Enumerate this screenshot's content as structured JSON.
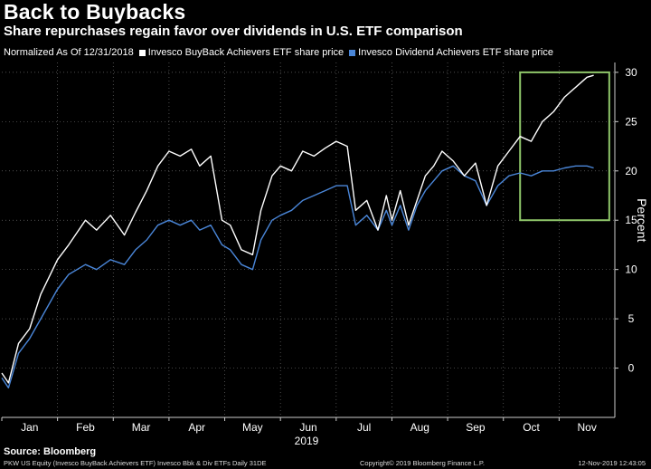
{
  "header": {
    "title": "Back to Buybacks",
    "subtitle": "Share repurchases regain favor over dividends in U.S. ETF comparison"
  },
  "legend": {
    "prefix": "Normalized As Of 12/31/2018",
    "items": [
      {
        "label": "Invesco BuyBack Achievers ETF share price",
        "color": "#ffffff"
      },
      {
        "label": "Invesco Dividend Achievers ETF share price",
        "color": "#4a86d8"
      }
    ]
  },
  "footer": {
    "source": "Source: Bloomberg",
    "tickers": "PKW US Equity (Invesco BuyBack Achievers ETF) Invesco Bbk & Div ETFs  Daily 31DE",
    "copyright": "Copyright© 2019 Bloomberg Finance L.P.",
    "timestamp": "12-Nov-2019 12:43:05"
  },
  "chart_data": {
    "type": "line",
    "ylabel": "Percent",
    "xlabel": "2019",
    "ylim": [
      -5,
      31
    ],
    "yticks": [
      0,
      5,
      10,
      15,
      20,
      25,
      30
    ],
    "y_axis_side": "right",
    "grid": "dotted",
    "month_labels": [
      "Jan",
      "Feb",
      "Mar",
      "Apr",
      "May",
      "Jun",
      "Jul",
      "Aug",
      "Sep",
      "Oct",
      "Nov"
    ],
    "highlight_box": {
      "x_range": [
        9.3,
        10.9
      ],
      "y_range": [
        15,
        30
      ],
      "color": "#8fc66a"
    },
    "series": [
      {
        "name": "Invesco BuyBack Achievers ETF share price",
        "color": "#ffffff",
        "x": [
          0,
          0.12,
          0.3,
          0.5,
          0.7,
          1.0,
          1.2,
          1.5,
          1.7,
          1.95,
          2.2,
          2.4,
          2.6,
          2.8,
          3.0,
          3.2,
          3.4,
          3.55,
          3.75,
          3.95,
          4.1,
          4.3,
          4.5,
          4.65,
          4.85,
          5.0,
          5.2,
          5.4,
          5.6,
          5.8,
          6.0,
          6.2,
          6.35,
          6.55,
          6.75,
          6.9,
          7.0,
          7.15,
          7.3,
          7.45,
          7.6,
          7.75,
          7.9,
          8.1,
          8.3,
          8.5,
          8.7,
          8.9,
          9.1,
          9.3,
          9.5,
          9.7,
          9.9,
          10.1,
          10.3,
          10.5,
          10.62
        ],
        "values": [
          -0.5,
          -1.5,
          2.5,
          4.0,
          7.5,
          11.0,
          12.5,
          15.0,
          14.0,
          15.5,
          13.5,
          15.8,
          18.0,
          20.5,
          22.0,
          21.5,
          22.2,
          20.5,
          21.5,
          15.0,
          14.5,
          12.0,
          11.5,
          16.0,
          19.5,
          20.5,
          20.0,
          22.0,
          21.5,
          22.3,
          23.0,
          22.5,
          16.0,
          17.0,
          14.0,
          17.5,
          15.0,
          18.0,
          14.5,
          17.0,
          19.5,
          20.5,
          22.0,
          21.0,
          19.5,
          20.8,
          16.5,
          20.5,
          22.0,
          23.5,
          23.0,
          25.0,
          26.0,
          27.5,
          28.5,
          29.5,
          29.7
        ]
      },
      {
        "name": "Invesco Dividend Achievers ETF share price",
        "color": "#4a86d8",
        "x": [
          0,
          0.12,
          0.3,
          0.5,
          0.7,
          1.0,
          1.2,
          1.5,
          1.7,
          1.95,
          2.2,
          2.4,
          2.6,
          2.8,
          3.0,
          3.2,
          3.4,
          3.55,
          3.75,
          3.95,
          4.1,
          4.3,
          4.5,
          4.65,
          4.85,
          5.0,
          5.2,
          5.4,
          5.6,
          5.8,
          6.0,
          6.2,
          6.35,
          6.55,
          6.75,
          6.9,
          7.0,
          7.15,
          7.3,
          7.45,
          7.6,
          7.75,
          7.9,
          8.1,
          8.3,
          8.5,
          8.7,
          8.9,
          9.1,
          9.3,
          9.5,
          9.7,
          9.9,
          10.1,
          10.3,
          10.5,
          10.62
        ],
        "values": [
          -1.0,
          -2.0,
          1.5,
          3.0,
          5.0,
          8.0,
          9.5,
          10.5,
          10.0,
          11.0,
          10.5,
          12.0,
          13.0,
          14.5,
          15.0,
          14.5,
          15.0,
          14.0,
          14.5,
          12.5,
          12.0,
          10.5,
          10.0,
          13.0,
          15.0,
          15.5,
          16.0,
          17.0,
          17.5,
          18.0,
          18.5,
          18.5,
          14.5,
          15.5,
          14.0,
          16.0,
          14.5,
          16.5,
          14.0,
          16.5,
          18.0,
          19.0,
          20.0,
          20.5,
          19.5,
          19.0,
          16.5,
          18.5,
          19.5,
          19.8,
          19.5,
          20.0,
          20.0,
          20.3,
          20.5,
          20.5,
          20.3
        ]
      }
    ]
  }
}
